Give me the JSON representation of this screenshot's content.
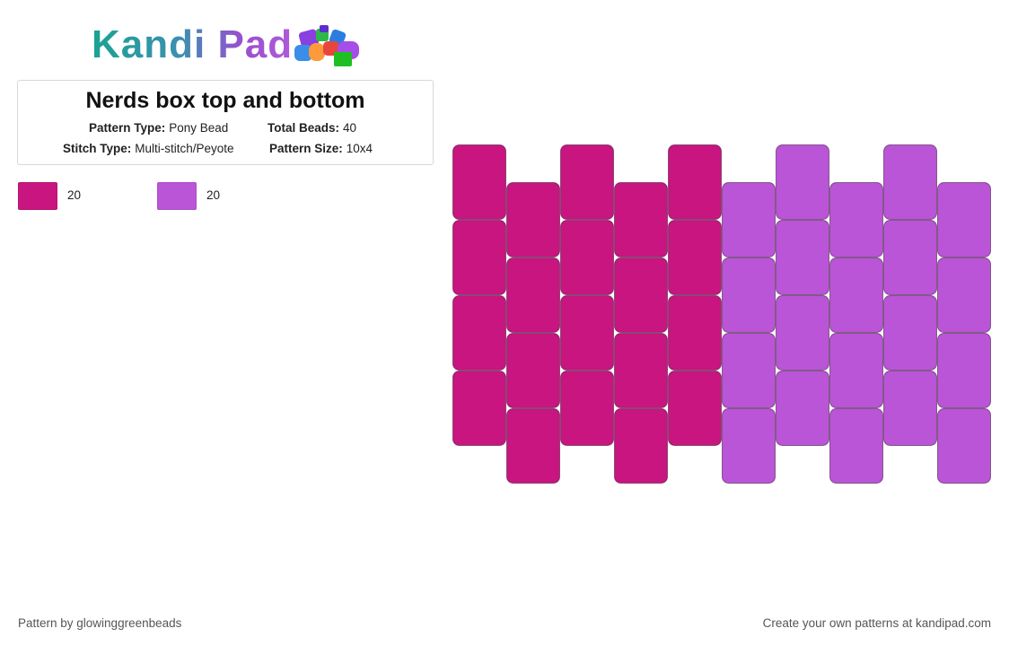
{
  "header": {
    "logo_text": "Kandi Pad",
    "logo_icon": "bead-pile-icon"
  },
  "pattern": {
    "title": "Nerds box top and bottom",
    "pattern_type_label": "Pattern Type:",
    "pattern_type": "Pony Bead",
    "total_beads_label": "Total Beads:",
    "total_beads": "40",
    "stitch_type_label": "Stitch Type:",
    "stitch_type": "Multi-stitch/Peyote",
    "pattern_size_label": "Pattern Size:",
    "pattern_size": "10x4"
  },
  "legend": [
    {
      "color": "#c8157f",
      "count": "20"
    },
    {
      "color": "#b955d6",
      "count": "20"
    }
  ],
  "bead_grid": {
    "columns": 10,
    "rows": 4,
    "stitch": "peyote",
    "odd_columns_offset": "down-half",
    "colors": [
      "#c8157f",
      "#c8157f",
      "#c8157f",
      "#c8157f",
      "#c8157f",
      "#b955d6",
      "#b955d6",
      "#b955d6",
      "#b955d6",
      "#b955d6"
    ]
  },
  "footer": {
    "credit": "Pattern by glowinggreenbeads",
    "promo": "Create your own patterns at kandipad.com"
  }
}
